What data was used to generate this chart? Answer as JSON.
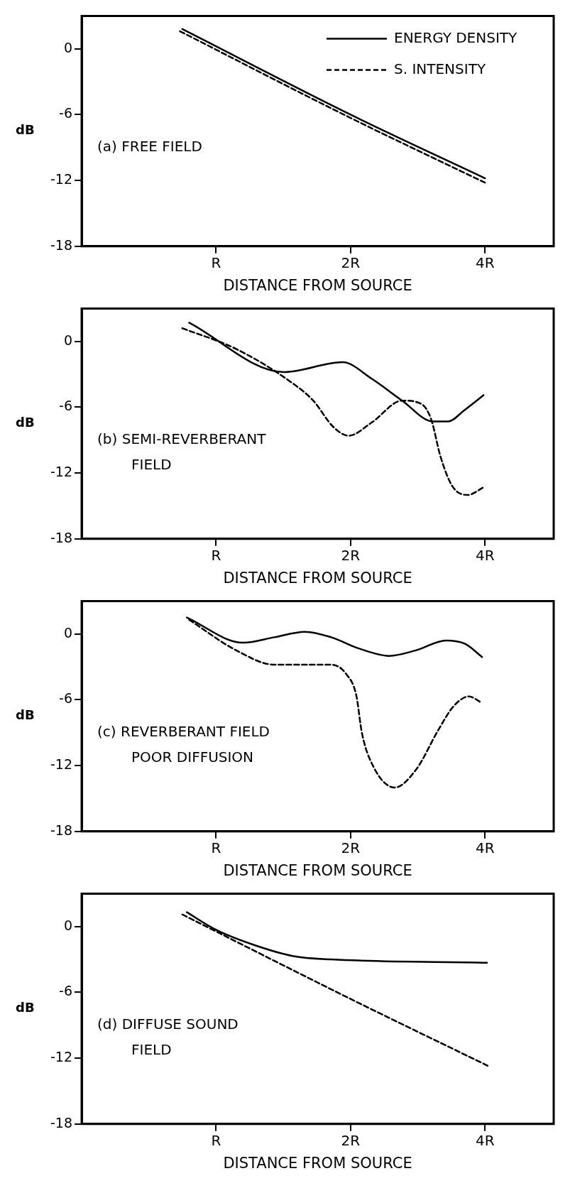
{
  "chart_data": [
    {
      "type": "line",
      "xlabel": "DISTANCE FROM SOURCE",
      "ylabel": "dB",
      "log": "x",
      "xlim": [
        0.5,
        5.7
      ],
      "xticks": [
        {
          "value": 1,
          "label": "R"
        },
        {
          "value": 2,
          "label": "2R"
        },
        {
          "value": 4,
          "label": "4R"
        }
      ],
      "ylim": [
        -18,
        3
      ],
      "yticks": [
        -18,
        -12,
        -6,
        0
      ],
      "grid": false,
      "marker": "none",
      "legend": "top right",
      "annotations": [
        "(a) FREE FIELD"
      ],
      "series": [
        {
          "name": "ENERGY DENSITY",
          "color": "#000000",
          "line_style": "solid",
          "x": [
            0.84,
            2,
            4
          ],
          "values": [
            1.8,
            -6.0,
            -11.8
          ]
        },
        {
          "name": "S. INTENSITY",
          "color": "#000000",
          "line_style": "dashed",
          "x": [
            0.83,
            2,
            4
          ],
          "values": [
            1.6,
            -6.3,
            -12.2
          ]
        }
      ]
    },
    {
      "type": "line",
      "xlabel": "DISTANCE FROM SOURCE",
      "ylabel": "dB",
      "log": "x",
      "xlim": [
        0.5,
        5.7
      ],
      "xticks": [
        {
          "value": 1,
          "label": "R"
        },
        {
          "value": 2,
          "label": "2R"
        },
        {
          "value": 4,
          "label": "4R"
        }
      ],
      "ylim": [
        -18,
        3
      ],
      "yticks": [
        -18,
        -12,
        -6,
        0
      ],
      "grid": false,
      "marker": "none",
      "annotations": [
        "(b) SEMI-REVERBERANT\nFIELD"
      ],
      "series": [
        {
          "color": "#000000",
          "line_style": "solid",
          "x": [
            0.87,
            1.42,
            1.92,
            2.23,
            2.61,
            3.06,
            3.31,
            3.59,
            3.97
          ],
          "values": [
            1.7,
            -2.8,
            -1.9,
            -3.4,
            -5.4,
            -7.3,
            -7.3,
            -6.3,
            -4.9
          ]
        },
        {
          "color": "#000000",
          "line_style": "dashed",
          "x": [
            0.84,
            1.11,
            1.47,
            1.65,
            1.83,
            1.98,
            2.23,
            2.61,
            2.88,
            3.03,
            3.18,
            3.38,
            3.66,
            3.97
          ],
          "values": [
            1.2,
            -0.7,
            -3.7,
            -5.4,
            -7.8,
            -8.6,
            -7.4,
            -5.4,
            -5.7,
            -7.1,
            -10.5,
            -13.2,
            -14.0,
            -13.3
          ]
        }
      ]
    },
    {
      "type": "line",
      "xlabel": "DISTANCE FROM SOURCE",
      "ylabel": "dB",
      "log": "x",
      "xlim": [
        0.5,
        5.7
      ],
      "xticks": [
        {
          "value": 1,
          "label": "R"
        },
        {
          "value": 2,
          "label": "2R"
        },
        {
          "value": 4,
          "label": "4R"
        }
      ],
      "ylim": [
        -18,
        3
      ],
      "yticks": [
        -18,
        -12,
        -6,
        0
      ],
      "grid": false,
      "marker": "none",
      "annotations": [
        "(c) REVERBERANT FIELD\nPOOR DIFFUSION"
      ],
      "series": [
        {
          "color": "#000000",
          "line_style": "solid",
          "x": [
            0.86,
            1.15,
            1.35,
            1.58,
            1.81,
            2.08,
            2.44,
            2.8,
            3.27,
            3.61,
            3.94
          ],
          "values": [
            1.5,
            -0.8,
            -0.3,
            0.2,
            -0.3,
            -1.3,
            -2.0,
            -1.5,
            -0.6,
            -0.9,
            -2.1
          ]
        },
        {
          "color": "#000000",
          "line_style": "dashed",
          "x": [
            0.87,
            1.11,
            1.35,
            1.81,
            1.96,
            2.06,
            2.12,
            2.25,
            2.51,
            2.8,
            3.15,
            3.4,
            3.68,
            3.94
          ],
          "values": [
            1.3,
            -1.5,
            -2.8,
            -2.8,
            -3.7,
            -5.6,
            -9.0,
            -12.1,
            -14.0,
            -12.4,
            -8.7,
            -6.6,
            -5.7,
            -6.3
          ]
        }
      ]
    },
    {
      "type": "line",
      "xlabel": "DISTANCE FROM SOURCE",
      "ylabel": "dB",
      "log": "x",
      "xlim": [
        0.5,
        5.7
      ],
      "xticks": [
        {
          "value": 1,
          "label": "R"
        },
        {
          "value": 2,
          "label": "2R"
        },
        {
          "value": 4,
          "label": "4R"
        }
      ],
      "ylim": [
        -18,
        3
      ],
      "yticks": [
        -18,
        -12,
        -6,
        0
      ],
      "grid": false,
      "marker": "none",
      "annotations": [
        "(d) DIFFUSE SOUND\nFIELD"
      ],
      "series": [
        {
          "color": "#000000",
          "line_style": "solid",
          "x": [
            0.86,
            1.0,
            1.22,
            1.49,
            1.81,
            4.04
          ],
          "values": [
            1.3,
            -0.3,
            -1.7,
            -2.7,
            -3.0,
            -3.3
          ]
        },
        {
          "color": "#000000",
          "line_style": "dashed",
          "x": [
            0.84,
            2,
            4.06
          ],
          "values": [
            1.1,
            -6.6,
            -12.7
          ]
        }
      ]
    }
  ]
}
